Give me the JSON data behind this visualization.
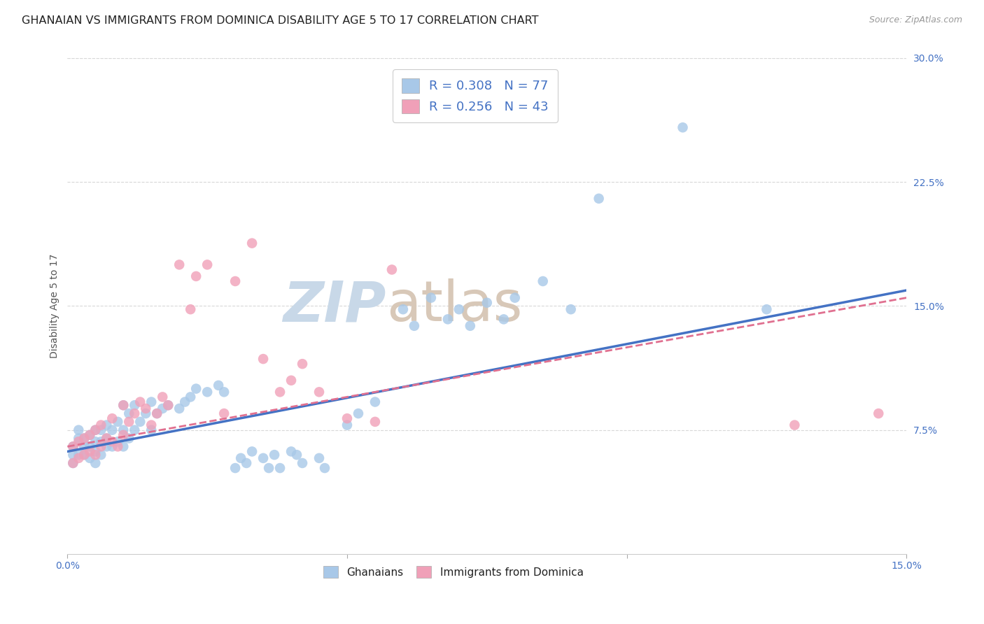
{
  "title": "GHANAIAN VS IMMIGRANTS FROM DOMINICA DISABILITY AGE 5 TO 17 CORRELATION CHART",
  "source_text": "Source: ZipAtlas.com",
  "ylabel": "Disability Age 5 to 17",
  "xlim": [
    0.0,
    0.15
  ],
  "ylim": [
    0.0,
    0.3
  ],
  "xtick_labels": [
    "0.0%",
    "",
    "",
    "15.0%"
  ],
  "ytick_labels": [
    "",
    "7.5%",
    "15.0%",
    "22.5%",
    "30.0%"
  ],
  "watermark_zip": "ZIP",
  "watermark_atlas": "atlas",
  "blue_color": "#a8c8e8",
  "pink_color": "#f0a0b8",
  "blue_line_color": "#4472c4",
  "pink_line_color": "#e07090",
  "blue_R": 0.308,
  "blue_N": 77,
  "pink_R": 0.256,
  "pink_N": 43,
  "title_fontsize": 11.5,
  "tick_fontsize": 10,
  "watermark_fontsize_zip": 58,
  "watermark_fontsize_atlas": 58,
  "watermark_color_zip": "#c8d8e8",
  "watermark_color_atlas": "#d8c8b8",
  "background_color": "#ffffff",
  "grid_color": "#d8d8d8",
  "ghanaians_x": [
    0.001,
    0.001,
    0.001,
    0.002,
    0.002,
    0.002,
    0.003,
    0.003,
    0.003,
    0.004,
    0.004,
    0.004,
    0.005,
    0.005,
    0.005,
    0.005,
    0.006,
    0.006,
    0.006,
    0.007,
    0.007,
    0.007,
    0.008,
    0.008,
    0.009,
    0.009,
    0.01,
    0.01,
    0.01,
    0.011,
    0.011,
    0.012,
    0.012,
    0.013,
    0.014,
    0.015,
    0.015,
    0.016,
    0.017,
    0.018,
    0.02,
    0.021,
    0.022,
    0.023,
    0.025,
    0.027,
    0.028,
    0.03,
    0.031,
    0.032,
    0.033,
    0.035,
    0.036,
    0.037,
    0.038,
    0.04,
    0.041,
    0.042,
    0.045,
    0.046,
    0.05,
    0.052,
    0.055,
    0.06,
    0.062,
    0.065,
    0.068,
    0.07,
    0.072,
    0.075,
    0.078,
    0.08,
    0.085,
    0.09,
    0.095,
    0.11,
    0.125
  ],
  "ghanaians_y": [
    0.055,
    0.06,
    0.065,
    0.06,
    0.07,
    0.075,
    0.06,
    0.065,
    0.07,
    0.058,
    0.065,
    0.072,
    0.055,
    0.062,
    0.068,
    0.075,
    0.06,
    0.068,
    0.075,
    0.065,
    0.07,
    0.078,
    0.065,
    0.075,
    0.068,
    0.08,
    0.065,
    0.075,
    0.09,
    0.07,
    0.085,
    0.075,
    0.09,
    0.08,
    0.085,
    0.075,
    0.092,
    0.085,
    0.088,
    0.09,
    0.088,
    0.092,
    0.095,
    0.1,
    0.098,
    0.102,
    0.098,
    0.052,
    0.058,
    0.055,
    0.062,
    0.058,
    0.052,
    0.06,
    0.052,
    0.062,
    0.06,
    0.055,
    0.058,
    0.052,
    0.078,
    0.085,
    0.092,
    0.148,
    0.138,
    0.155,
    0.142,
    0.148,
    0.138,
    0.152,
    0.142,
    0.155,
    0.165,
    0.148,
    0.215,
    0.258,
    0.148
  ],
  "dominica_x": [
    0.001,
    0.001,
    0.002,
    0.002,
    0.003,
    0.003,
    0.004,
    0.004,
    0.005,
    0.005,
    0.006,
    0.006,
    0.007,
    0.008,
    0.008,
    0.009,
    0.01,
    0.01,
    0.011,
    0.012,
    0.013,
    0.014,
    0.015,
    0.016,
    0.017,
    0.018,
    0.02,
    0.022,
    0.023,
    0.025,
    0.028,
    0.03,
    0.033,
    0.035,
    0.038,
    0.04,
    0.042,
    0.045,
    0.05,
    0.055,
    0.058,
    0.13,
    0.145
  ],
  "dominica_y": [
    0.055,
    0.065,
    0.058,
    0.068,
    0.06,
    0.07,
    0.062,
    0.072,
    0.06,
    0.075,
    0.065,
    0.078,
    0.07,
    0.068,
    0.082,
    0.065,
    0.072,
    0.09,
    0.08,
    0.085,
    0.092,
    0.088,
    0.078,
    0.085,
    0.095,
    0.09,
    0.175,
    0.148,
    0.168,
    0.175,
    0.085,
    0.165,
    0.188,
    0.118,
    0.098,
    0.105,
    0.115,
    0.098,
    0.082,
    0.08,
    0.172,
    0.078,
    0.085
  ]
}
